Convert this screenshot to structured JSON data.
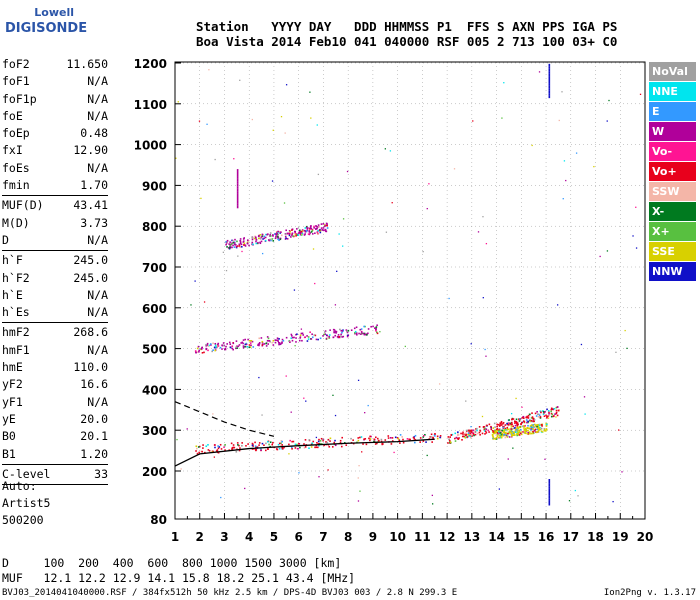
{
  "logo": {
    "line1": "Lowell",
    "line2": "DIGISONDE"
  },
  "header": {
    "row1": "Station   YYYY DAY   DDD HHMMSS P1  FFS S AXN PPS IGA PS",
    "row2": "Boa Vista 2014 Feb10 041 040000 RSF 005 2 713 100 03+ C0"
  },
  "params": [
    {
      "k": "foF2",
      "v": "11.650"
    },
    {
      "k": "foF1",
      "v": "N/A"
    },
    {
      "k": "foF1p",
      "v": "N/A"
    },
    {
      "k": "foE",
      "v": "N/A"
    },
    {
      "k": "foEp",
      "v": "0.48"
    },
    {
      "k": "fxI",
      "v": "12.90"
    },
    {
      "k": "foEs",
      "v": "N/A"
    },
    {
      "k": "fmin",
      "v": "1.70"
    },
    {
      "sep": true
    },
    {
      "k": "MUF(D)",
      "v": "43.41"
    },
    {
      "k": "M(D)",
      "v": "3.73"
    },
    {
      "k": "D",
      "v": "N/A"
    },
    {
      "sep": true
    },
    {
      "k": "h`F",
      "v": "245.0"
    },
    {
      "k": "h`F2",
      "v": "245.0"
    },
    {
      "k": "h`E",
      "v": "N/A"
    },
    {
      "k": "h`Es",
      "v": "N/A"
    },
    {
      "sep": true
    },
    {
      "k": "hmF2",
      "v": "268.6"
    },
    {
      "k": "hmF1",
      "v": "N/A"
    },
    {
      "k": "hmE",
      "v": "110.0"
    },
    {
      "k": "yF2",
      "v": "16.6"
    },
    {
      "k": "yF1",
      "v": "N/A"
    },
    {
      "k": "yE",
      "v": "20.0"
    },
    {
      "k": "B0",
      "v": "20.1"
    },
    {
      "k": "B1",
      "v": "1.20"
    },
    {
      "sep": true
    },
    {
      "k": "C-level",
      "v": "33"
    },
    {
      "sep": true
    }
  ],
  "auto": {
    "l1": "Auto:",
    "l2": "Artist5",
    "l3": "500200"
  },
  "legend": [
    {
      "name": "NoVal",
      "color": "#a0a0a0"
    },
    {
      "name": "NNE",
      "color": "#00e5ee"
    },
    {
      "name": "E",
      "color": "#3399ff"
    },
    {
      "name": "W",
      "color": "#b0009a"
    },
    {
      "name": "Vo-",
      "color": "#ff1493"
    },
    {
      "name": "Vo+",
      "color": "#e8001c"
    },
    {
      "name": "SSW",
      "color": "#f4b6a8"
    },
    {
      "name": "X-",
      "color": "#007a1f"
    },
    {
      "name": "X+",
      "color": "#58c040"
    },
    {
      "name": "SSE",
      "color": "#d8d000"
    },
    {
      "name": "NNW",
      "color": "#1010c8"
    }
  ],
  "bottom": {
    "row1": "D     100  200  400  600  800 1000 1500 3000 [km]",
    "row2": "MUF   12.1 12.2 12.9 14.1 15.8 18.2 25.1 43.4 [MHz]"
  },
  "footer": "BVJ03_2014041040000.RSF / 384fx512h 50 kHz 2.5 km / DPS-4D BVJ03 003 / 2.8 N 299.3 E",
  "version": "Ion2Png v. 1.3.17",
  "chart_data": {
    "type": "scatter",
    "xlim": [
      1,
      20
    ],
    "ylim": [
      80,
      1200
    ],
    "x_ticks": [
      1,
      2,
      3,
      4,
      5,
      6,
      7,
      8,
      9,
      10,
      11,
      12,
      13,
      14,
      15,
      16,
      17,
      18,
      19,
      20
    ],
    "y_ticks": [
      80,
      200,
      300,
      400,
      500,
      600,
      700,
      800,
      900,
      1000,
      1100,
      1200
    ],
    "grid": true,
    "legend_position": "right",
    "traces": [
      {
        "color": "#e8001c",
        "x": [
          1.8,
          11.8
        ],
        "y": [
          255,
          285
        ]
      },
      {
        "color": "#b0009a",
        "x": [
          1.8,
          9.2
        ],
        "y": [
          500,
          550
        ]
      },
      {
        "color": "#b0009a",
        "x": [
          3.0,
          7.2
        ],
        "y": [
          755,
          800
        ]
      },
      {
        "color": "#e8001c",
        "x": [
          12.0,
          16.5
        ],
        "y": [
          280,
          350
        ]
      },
      {
        "color": "#d8d000",
        "x": [
          13.8,
          16.0
        ],
        "y": [
          290,
          310
        ]
      }
    ],
    "model_curve_solid": {
      "x": [
        1,
        2,
        4,
        6,
        8,
        10,
        11.5
      ],
      "y": [
        212,
        242,
        255,
        262,
        268,
        272,
        278
      ]
    },
    "model_curve_dashed": {
      "x": [
        1,
        2,
        3,
        4,
        5
      ],
      "y": [
        370,
        345,
        320,
        300,
        285
      ]
    }
  }
}
